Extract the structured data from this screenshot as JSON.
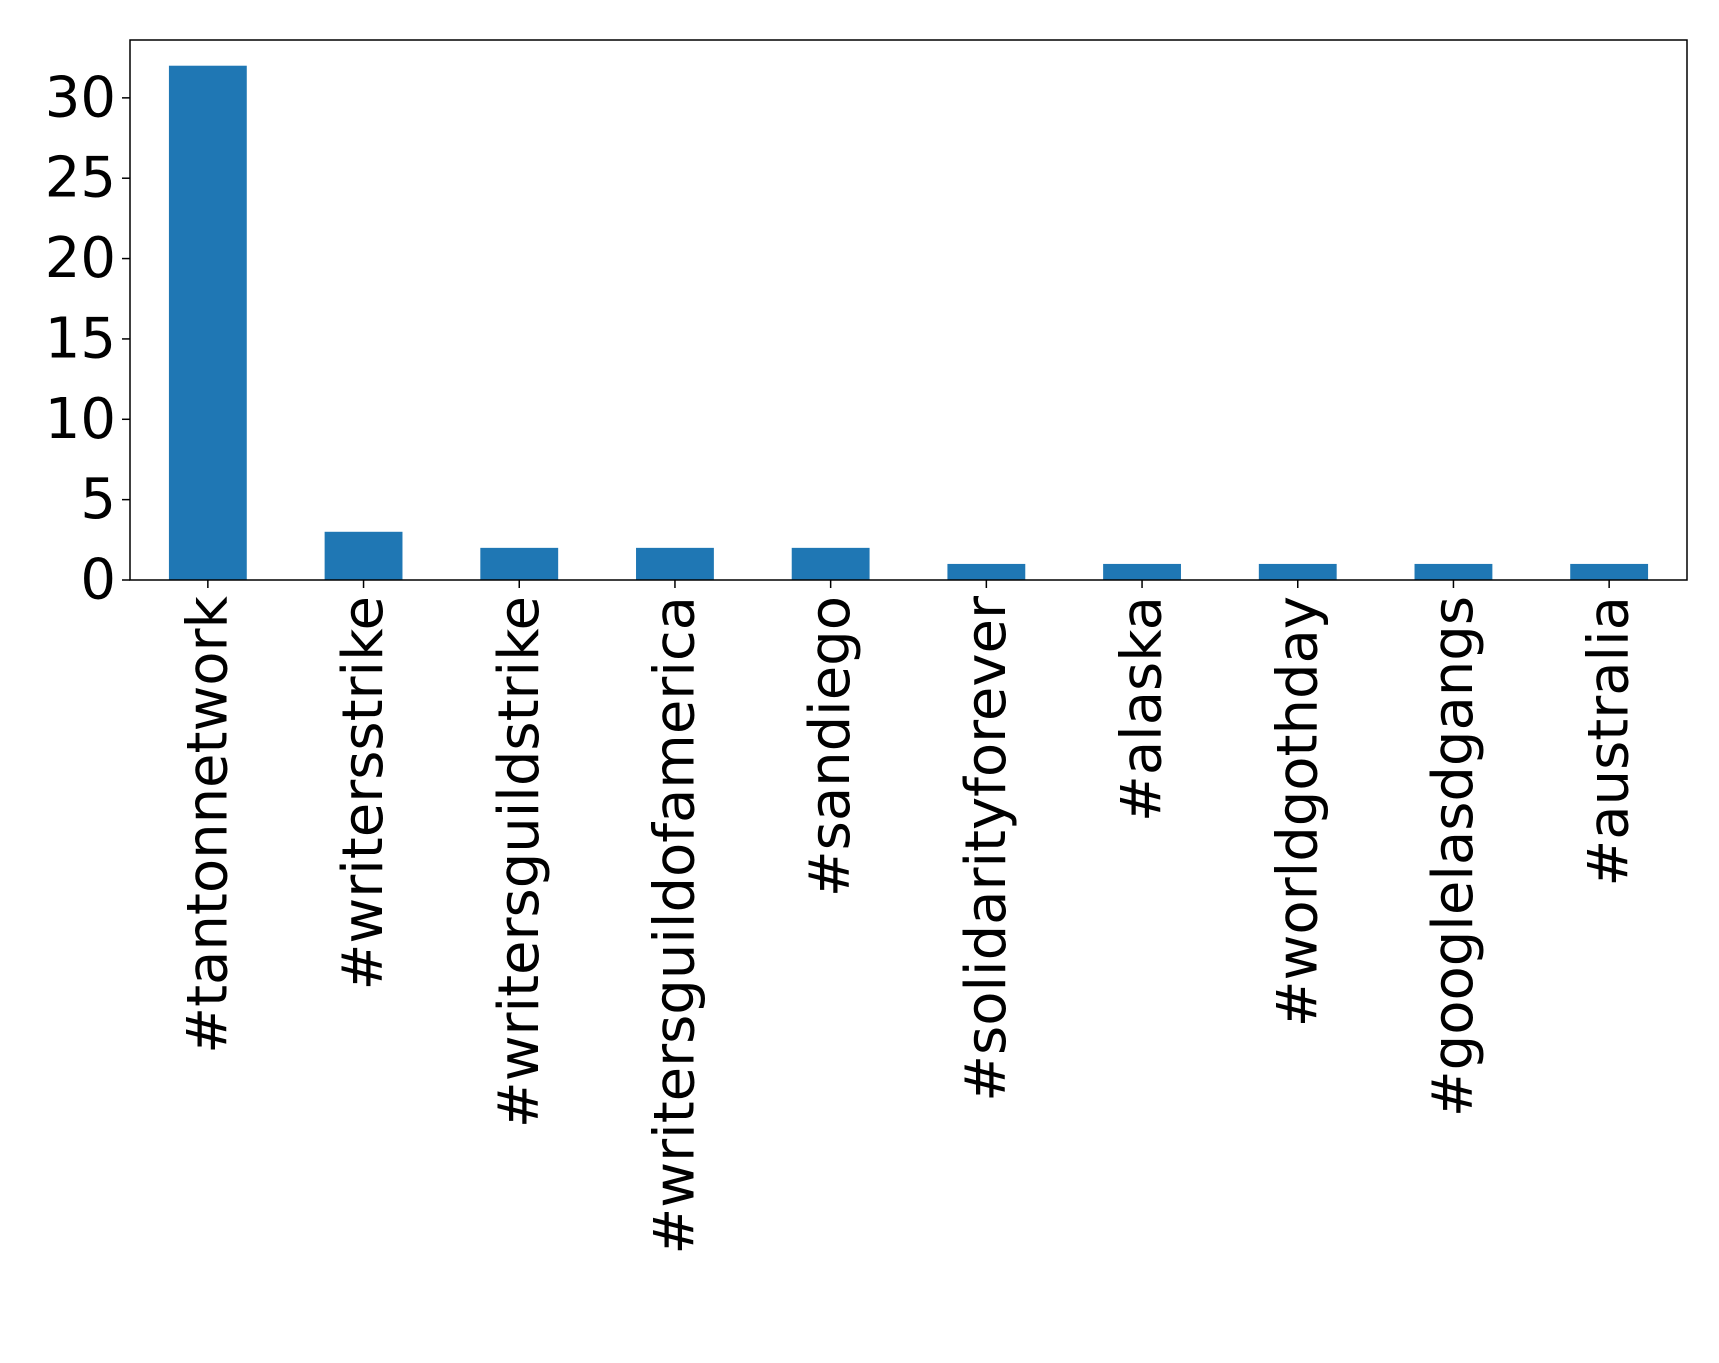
{
  "chart_data": {
    "type": "bar",
    "title": "",
    "xlabel": "",
    "ylabel": "",
    "categories": [
      "#tantonnetwork",
      "#writersstrike",
      "#writersguildstrike",
      "#writersguildofamerica",
      "#sandiego",
      "#solidarityforever",
      "#alaska",
      "#worldgothday",
      "#googlelasdgangs",
      "#australia"
    ],
    "values": [
      32,
      3,
      2,
      2,
      2,
      1,
      1,
      1,
      1,
      1
    ],
    "ylim": [
      0,
      33.6
    ],
    "yticks": [
      0,
      5,
      10,
      15,
      20,
      25,
      30
    ],
    "ytick_labels": [
      "0",
      "5",
      "10",
      "15",
      "20",
      "25",
      "30"
    ],
    "bar_color": "#1f77b4",
    "grid": false,
    "legend": "none"
  }
}
